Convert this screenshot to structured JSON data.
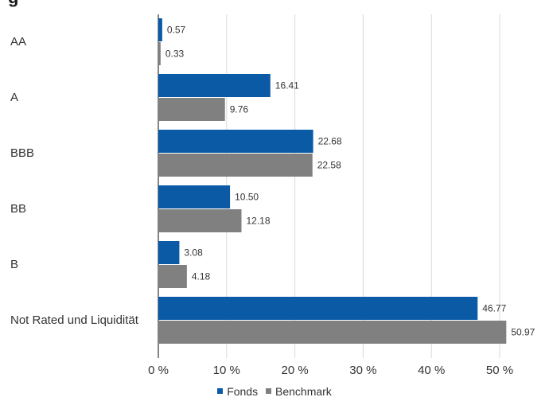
{
  "chart_data": {
    "type": "bar",
    "orientation": "horizontal",
    "categories": [
      "AA",
      "A",
      "BBB",
      "BB",
      "B",
      "Not Rated und Liquidität"
    ],
    "series": [
      {
        "name": "Fonds",
        "color": "#0a5aa6",
        "values": [
          0.57,
          16.41,
          22.68,
          10.5,
          3.08,
          46.77
        ],
        "labels": [
          "0.57",
          "16.41",
          "22.68",
          "10.50",
          "3.08",
          "46.77"
        ]
      },
      {
        "name": "Benchmark",
        "color": "#808080",
        "values": [
          0.33,
          9.76,
          22.58,
          12.18,
          4.18,
          50.97
        ],
        "labels": [
          "0.33",
          "9.76",
          "22.58",
          "12.18",
          "4.18",
          "50.97"
        ]
      }
    ],
    "xlim": [
      0,
      50
    ],
    "xticks": [
      0,
      10,
      20,
      30,
      40,
      50
    ],
    "xtick_labels": [
      "0 %",
      "10 %",
      "20 %",
      "30 %",
      "40 %",
      "50 %"
    ],
    "grid": true,
    "legend_position": "bottom"
  }
}
